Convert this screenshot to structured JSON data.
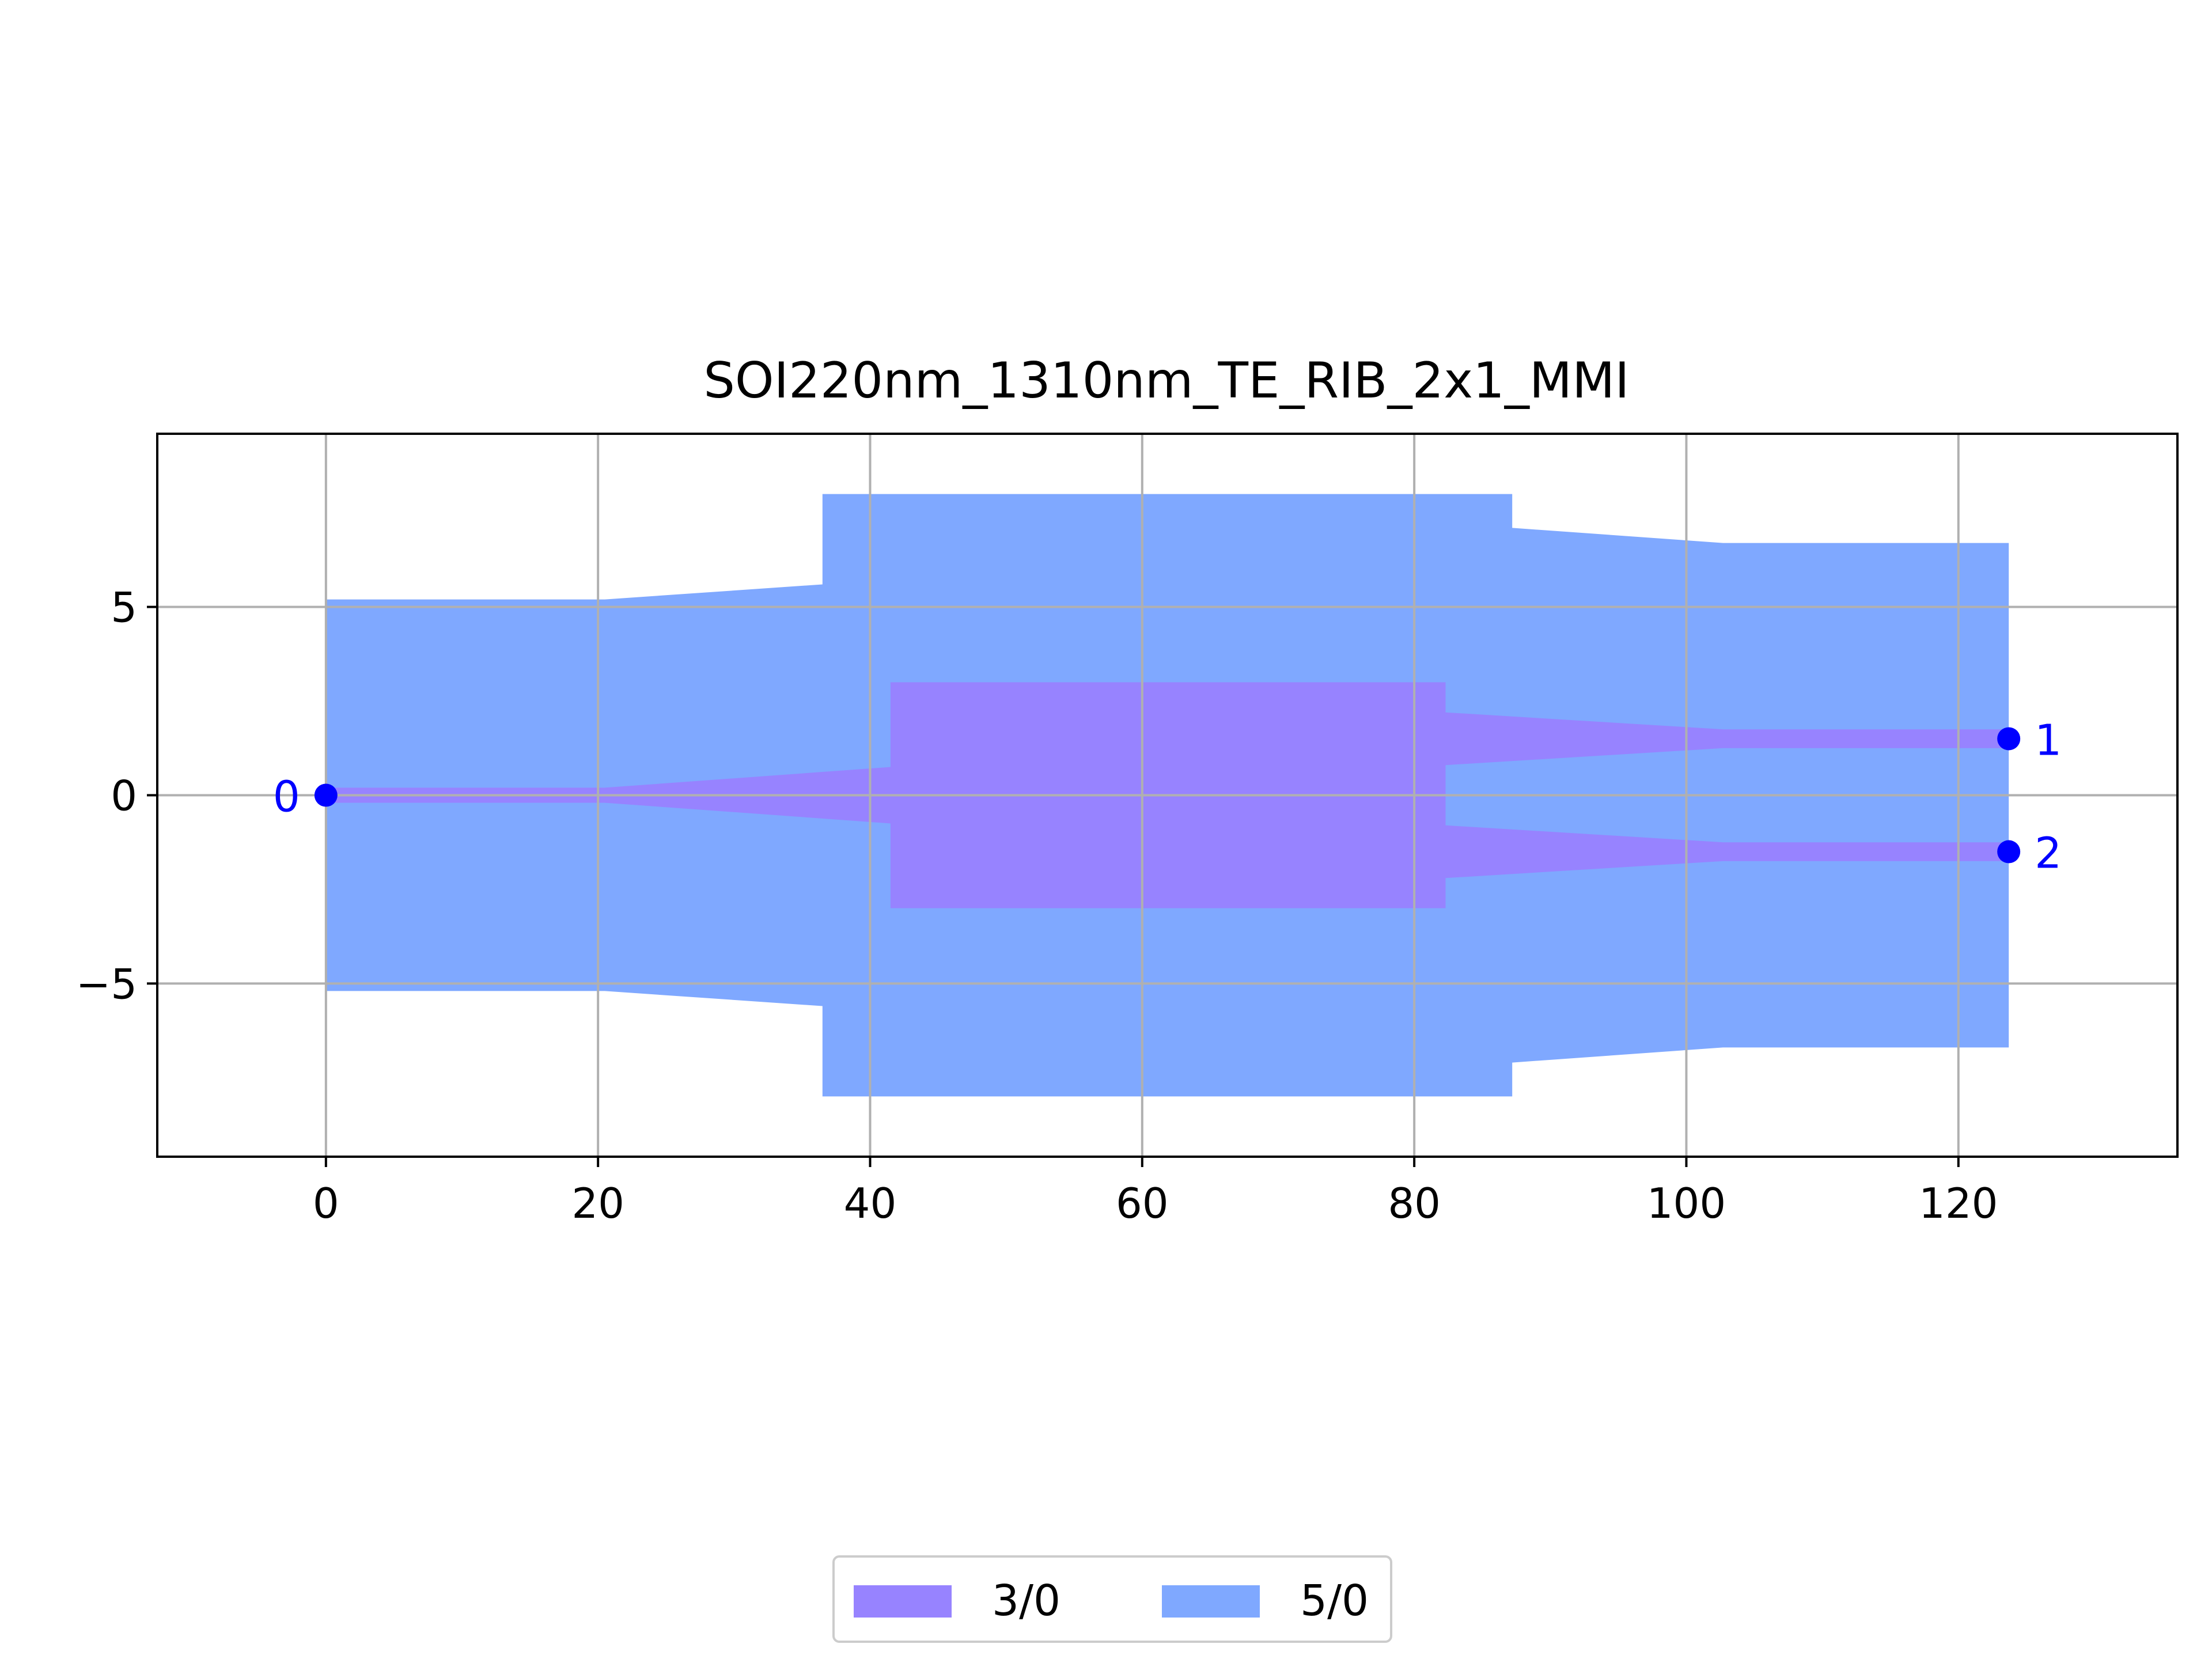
{
  "chart_data": {
    "type": "layout",
    "title": "SOI220nm_1310nm_TE_RIB_2x1_MMI",
    "xlabel": "",
    "ylabel": "",
    "xlim": [
      -12.4,
      136.1
    ],
    "ylim": [
      -9.6,
      9.6
    ],
    "grid": true,
    "xticks": [
      0,
      20,
      40,
      60,
      80,
      100,
      120
    ],
    "yticks": [
      -5,
      0,
      5
    ],
    "tick_labels_x": [
      "0",
      "20",
      "40",
      "60",
      "80",
      "100",
      "120"
    ],
    "tick_labels_y": [
      "−5",
      "0",
      "5"
    ],
    "layers": [
      {
        "name": "5/0",
        "color": "#7fa8ff",
        "polygon": [
          [
            0,
            5.2
          ],
          [
            20.5,
            5.2
          ],
          [
            36.5,
            5.6
          ],
          [
            36.5,
            8.0
          ],
          [
            87.2,
            8.0
          ],
          [
            87.2,
            7.1
          ],
          [
            102.7,
            6.7
          ],
          [
            123.7,
            6.7
          ],
          [
            123.7,
            -6.7
          ],
          [
            102.7,
            -6.7
          ],
          [
            87.2,
            -7.1
          ],
          [
            87.2,
            -8.0
          ],
          [
            36.5,
            -8.0
          ],
          [
            36.5,
            -5.6
          ],
          [
            20.5,
            -5.2
          ],
          [
            0,
            -5.2
          ]
        ]
      },
      {
        "name": "3/0",
        "color": "#9783ff",
        "polygon": [
          [
            0,
            0.2
          ],
          [
            20.5,
            0.2
          ],
          [
            41.5,
            0.75
          ],
          [
            41.5,
            3.0
          ],
          [
            82.3,
            3.0
          ],
          [
            82.3,
            2.2
          ],
          [
            102.7,
            1.75
          ],
          [
            123.7,
            1.75
          ],
          [
            123.7,
            1.25
          ],
          [
            102.7,
            1.25
          ],
          [
            82.3,
            0.8
          ],
          [
            82.3,
            -0.8
          ],
          [
            102.7,
            -1.25
          ],
          [
            123.7,
            -1.25
          ],
          [
            123.7,
            -1.75
          ],
          [
            102.7,
            -1.75
          ],
          [
            82.3,
            -2.2
          ],
          [
            82.3,
            -3.0
          ],
          [
            41.5,
            -3.0
          ],
          [
            41.5,
            -0.75
          ],
          [
            20.5,
            -0.2
          ],
          [
            0,
            -0.2
          ]
        ]
      }
    ],
    "ports": [
      {
        "label": "0",
        "x": 0,
        "y": 0,
        "side": "left"
      },
      {
        "label": "1",
        "x": 123.7,
        "y": 1.5,
        "side": "right"
      },
      {
        "label": "2",
        "x": 123.7,
        "y": -1.5,
        "side": "right"
      }
    ],
    "port_color": "#0000ff",
    "legend": {
      "placement": "bottom-center",
      "entries": [
        {
          "label": "3/0",
          "color": "#9783ff"
        },
        {
          "label": "5/0",
          "color": "#7fa8ff"
        }
      ]
    }
  }
}
